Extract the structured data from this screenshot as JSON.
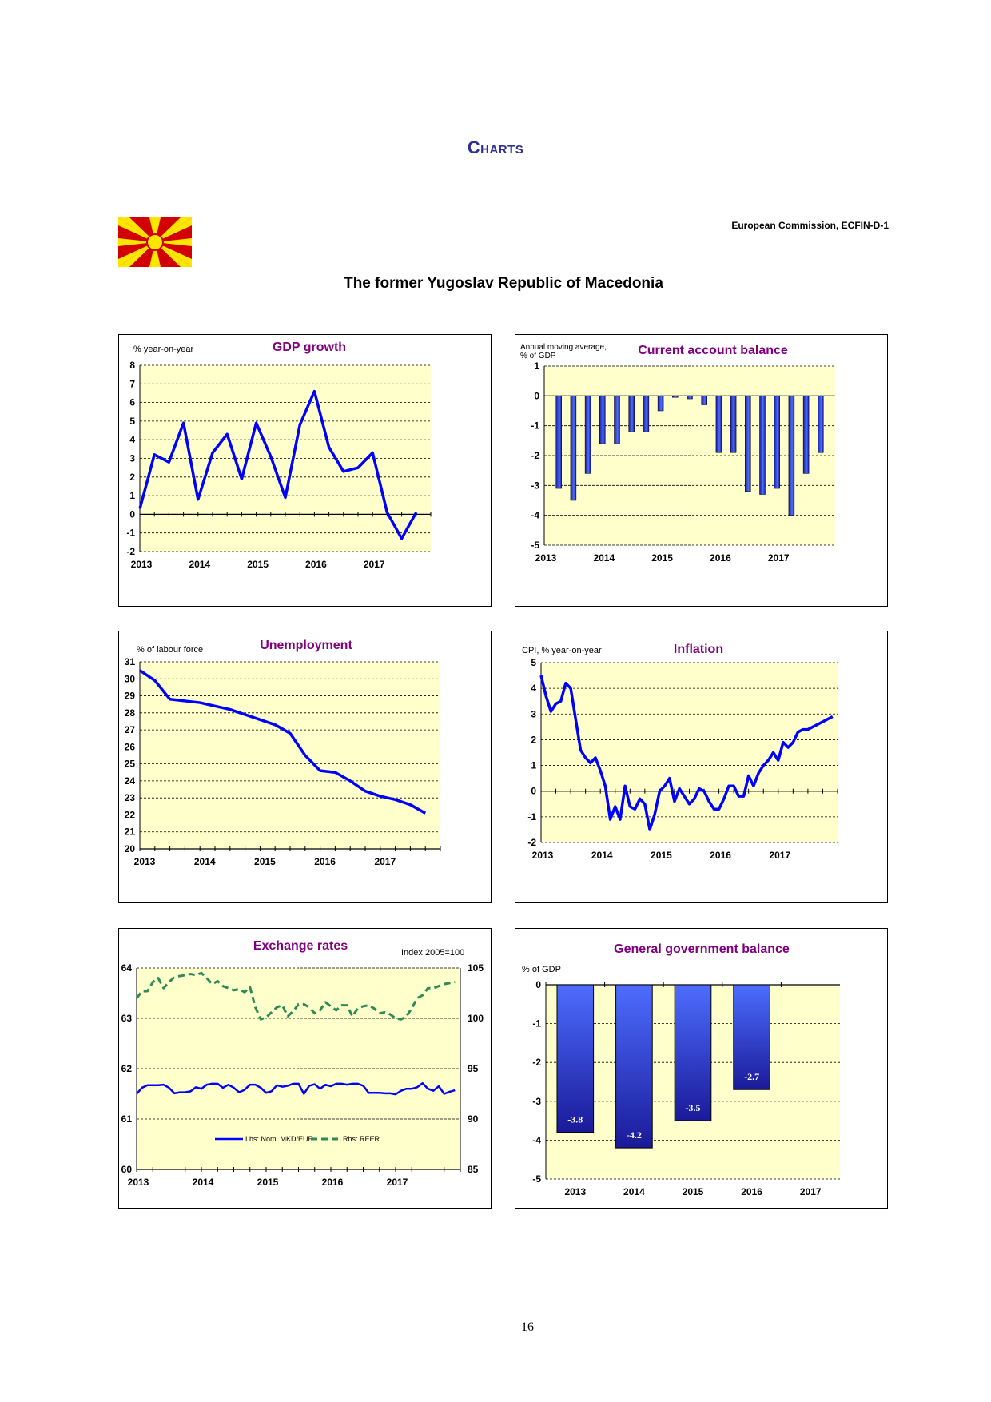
{
  "header": {
    "section_title": "Charts",
    "credit": "European Commission, ECFIN-D-1",
    "country": "The former Yugoslav Republic of Macedonia",
    "flag_colors": {
      "field": "#d20000",
      "sun": "#ffe600"
    }
  },
  "page_number": "16",
  "colors": {
    "plot_bg": "#ffffcc",
    "line": "#0000ff",
    "reer": "#2e8b57",
    "title": "#800080",
    "bar_top": "#4d6dff",
    "bar_bottom": "#1a1a99"
  },
  "chart_data": [
    {
      "id": "gdp",
      "type": "line",
      "title": "GDP growth",
      "unit": "% year-on-year",
      "x_labels": [
        "2013",
        "2014",
        "2015",
        "2016",
        "2017"
      ],
      "ylim": [
        -2,
        8
      ],
      "yticks": [
        -2,
        -1,
        0,
        1,
        2,
        3,
        4,
        5,
        6,
        7,
        8
      ],
      "ytick_labels": [
        "-2",
        "-1",
        "0",
        "1",
        "2",
        "3",
        "4",
        "5",
        "6",
        "7",
        "8"
      ],
      "x_domain": [
        0,
        20
      ],
      "series": [
        {
          "name": "GDP growth",
          "x": [
            0,
            1,
            2,
            3,
            4,
            5,
            6,
            7,
            8,
            9,
            10,
            11,
            12,
            13,
            14,
            15,
            16,
            17,
            18,
            19
          ],
          "y": [
            0.3,
            3.2,
            2.8,
            4.9,
            0.8,
            3.3,
            4.3,
            1.9,
            4.9,
            3.1,
            0.9,
            4.8,
            6.6,
            3.6,
            2.3,
            2.5,
            3.3,
            0.1,
            -1.3,
            0.1
          ]
        }
      ]
    },
    {
      "id": "ca",
      "type": "bar",
      "title": "Current account balance",
      "unit_lines": [
        "Annual moving average,",
        "% of GDP"
      ],
      "x_labels": [
        "2013",
        "2014",
        "2015",
        "2016",
        "2017"
      ],
      "ylim": [
        -5,
        1
      ],
      "yticks": [
        -5,
        -4,
        -3,
        -2,
        -1,
        0,
        1
      ],
      "ytick_labels": [
        "-5",
        "-4",
        "-3",
        "-2",
        "-1",
        "0",
        "1"
      ],
      "values": [
        -3.1,
        -3.5,
        -2.6,
        -1.6,
        -1.6,
        -1.2,
        -1.2,
        -0.5,
        -0.05,
        -0.1,
        -0.3,
        -1.9,
        -1.9,
        -3.2,
        -3.3,
        -3.1,
        -4.0,
        -2.6,
        -1.9
      ]
    },
    {
      "id": "unemp",
      "type": "line",
      "title": "Unemployment",
      "unit": "% of labour force",
      "x_labels": [
        "2013",
        "2014",
        "2015",
        "2016",
        "2017"
      ],
      "ylim": [
        20,
        31
      ],
      "yticks": [
        20,
        21,
        22,
        23,
        24,
        25,
        26,
        27,
        28,
        29,
        30,
        31
      ],
      "ytick_labels": [
        "20",
        "21",
        "22",
        "23",
        "24",
        "25",
        "26",
        "27",
        "28",
        "29",
        "30",
        "31"
      ],
      "x_domain": [
        0,
        20
      ],
      "series": [
        {
          "name": "Unemployment",
          "x": [
            0,
            1,
            2,
            3,
            4,
            5,
            6,
            7,
            8,
            9,
            10,
            11,
            12,
            13,
            14,
            15,
            16,
            17,
            18,
            19
          ],
          "y": [
            30.5,
            29.9,
            28.8,
            28.7,
            28.6,
            28.4,
            28.2,
            27.9,
            27.6,
            27.3,
            26.8,
            25.5,
            24.6,
            24.5,
            24.0,
            23.4,
            23.1,
            22.9,
            22.6,
            22.1
          ]
        }
      ]
    },
    {
      "id": "infl",
      "type": "line",
      "title": "Inflation",
      "unit": "CPI, % year-on-year",
      "x_labels": [
        "2013",
        "2014",
        "2015",
        "2016",
        "2017"
      ],
      "ylim": [
        -2,
        5
      ],
      "yticks": [
        -2,
        -1,
        0,
        1,
        2,
        3,
        4,
        5
      ],
      "ytick_labels": [
        "-2",
        "-1",
        "0",
        "1",
        "2",
        "3",
        "4",
        "5"
      ],
      "x_domain": [
        0,
        60
      ],
      "series": [
        {
          "name": "CPI",
          "x": [
            0,
            1,
            2,
            3,
            4,
            5,
            6,
            7,
            8,
            9,
            10,
            11,
            12,
            13,
            14,
            15,
            16,
            17,
            18,
            19,
            20,
            21,
            22,
            23,
            24,
            25,
            26,
            27,
            28,
            29,
            30,
            31,
            32,
            33,
            34,
            35,
            36,
            37,
            38,
            39,
            40,
            41,
            42,
            43,
            44,
            45,
            46,
            47,
            48,
            49,
            50,
            51,
            52,
            53,
            54,
            55,
            56,
            57,
            58,
            59
          ],
          "y": [
            4.5,
            3.7,
            3.1,
            3.4,
            3.5,
            4.2,
            4.0,
            2.8,
            1.6,
            1.3,
            1.1,
            1.3,
            0.8,
            0.2,
            -1.1,
            -0.6,
            -1.1,
            0.2,
            -0.6,
            -0.7,
            -0.3,
            -0.5,
            -1.5,
            -0.9,
            0.0,
            0.2,
            0.5,
            -0.4,
            0.1,
            -0.2,
            -0.5,
            -0.3,
            0.1,
            0.0,
            -0.4,
            -0.7,
            -0.7,
            -0.3,
            0.2,
            0.2,
            -0.2,
            -0.2,
            0.6,
            0.2,
            0.7,
            1.0,
            1.2,
            1.5,
            1.2,
            1.9,
            1.7,
            1.9,
            2.3,
            2.4,
            2.4,
            2.5,
            2.6,
            2.7,
            2.8,
            2.9
          ]
        }
      ]
    },
    {
      "id": "fx",
      "type": "line",
      "title": "Exchange rates",
      "unit_right": "Index 2005=100",
      "x_labels": [
        "2013",
        "2014",
        "2015",
        "2016",
        "2017"
      ],
      "ylim_left": [
        60,
        64
      ],
      "ylim_right": [
        85,
        105
      ],
      "yticks_left": [
        60,
        61,
        62,
        63,
        64
      ],
      "ytick_labels_left": [
        "60",
        "61",
        "62",
        "63",
        "64"
      ],
      "yticks_right": [
        85,
        90,
        95,
        100,
        105
      ],
      "ytick_labels_right": [
        "85",
        "90",
        "95",
        "100",
        "105"
      ],
      "x_domain": [
        0,
        60
      ],
      "series": [
        {
          "name": "Lhs: Nom. MKD/EUR",
          "axis": "left",
          "style": "solid",
          "x": [
            0,
            1,
            2,
            3,
            4,
            5,
            6,
            7,
            8,
            9,
            10,
            11,
            12,
            13,
            14,
            15,
            16,
            17,
            18,
            19,
            20,
            21,
            22,
            23,
            24,
            25,
            26,
            27,
            28,
            29,
            30,
            31,
            32,
            33,
            34,
            35,
            36,
            37,
            38,
            39,
            40,
            41,
            42,
            43,
            44,
            45,
            46,
            47,
            48,
            49,
            50,
            51,
            52,
            53,
            54,
            55,
            56,
            57,
            58,
            59
          ],
          "y": [
            61.5,
            61.62,
            61.67,
            61.67,
            61.67,
            61.68,
            61.62,
            61.51,
            61.53,
            61.53,
            61.55,
            61.63,
            61.6,
            61.68,
            61.7,
            61.7,
            61.62,
            61.68,
            61.62,
            61.53,
            61.58,
            61.68,
            61.68,
            61.62,
            61.52,
            61.55,
            61.67,
            61.64,
            61.66,
            61.7,
            61.7,
            61.5,
            61.66,
            61.69,
            61.6,
            61.68,
            61.65,
            61.7,
            61.7,
            61.68,
            61.7,
            61.7,
            61.66,
            61.52,
            61.52,
            61.52,
            61.51,
            61.51,
            61.49,
            61.56,
            61.6,
            61.6,
            61.63,
            61.71,
            61.6,
            61.56,
            61.65,
            61.5,
            61.54,
            61.57
          ]
        },
        {
          "name": "Rhs: REER",
          "axis": "right",
          "style": "dashed",
          "x": [
            0,
            1,
            2,
            3,
            4,
            5,
            6,
            7,
            8,
            9,
            10,
            11,
            12,
            13,
            14,
            15,
            16,
            17,
            18,
            19,
            20,
            21,
            22,
            23,
            24,
            25,
            26,
            27,
            28,
            29,
            30,
            31,
            32,
            33,
            34,
            35,
            36,
            37,
            38,
            39,
            40,
            41,
            42,
            43,
            44,
            45,
            46,
            47,
            48,
            49,
            50,
            51,
            52,
            53,
            54,
            55,
            56,
            57,
            58,
            59
          ],
          "y": [
            102.0,
            102.7,
            102.7,
            103.6,
            104.0,
            103.0,
            103.6,
            104.1,
            104.2,
            104.3,
            104.4,
            104.3,
            104.5,
            104.0,
            103.4,
            103.7,
            103.2,
            103.0,
            102.8,
            102.9,
            102.6,
            103.1,
            101.1,
            99.9,
            100.1,
            100.6,
            101.1,
            101.3,
            100.2,
            100.7,
            101.4,
            101.4,
            101.1,
            100.5,
            100.8,
            101.6,
            101.2,
            100.8,
            101.3,
            101.3,
            100.2,
            101.0,
            101.2,
            101.3,
            101.0,
            100.5,
            100.6,
            100.4,
            100.0,
            99.9,
            100.2,
            101.0,
            102.0,
            102.3,
            103.0,
            103.0,
            103.2,
            103.4,
            103.5,
            103.6
          ]
        }
      ]
    },
    {
      "id": "ggb",
      "type": "bar",
      "title": "General government balance",
      "unit": "% of GDP",
      "x_labels": [
        "2013",
        "2014",
        "2015",
        "2016",
        "2017"
      ],
      "ylim": [
        -5,
        0
      ],
      "yticks": [
        -5,
        -4,
        -3,
        -2,
        -1,
        0
      ],
      "ytick_labels": [
        "-5",
        "-4",
        "-3",
        "-2",
        "-1",
        "0"
      ],
      "values": [
        -3.8,
        -4.2,
        -3.5,
        -2.7
      ],
      "value_labels": [
        "-3.8",
        "-4.2",
        "-3.5",
        "-2.7"
      ]
    }
  ]
}
